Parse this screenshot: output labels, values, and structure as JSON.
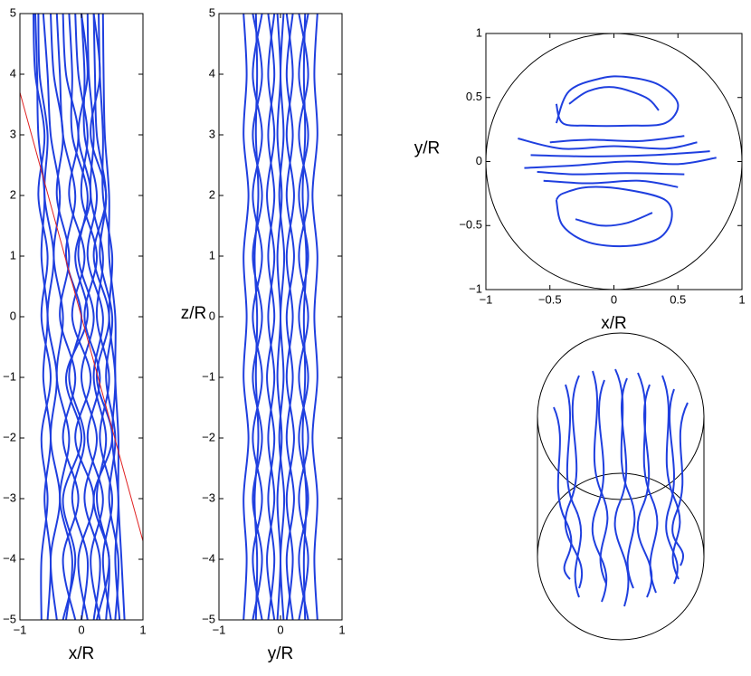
{
  "chart_data": [
    {
      "type": "streamlines",
      "x_label": "x/R",
      "xlim": [
        -1,
        1
      ],
      "ylim": [
        -5,
        5
      ],
      "xticks": [
        {
          "value": -1,
          "label": "−1"
        },
        0,
        1
      ],
      "yticks": [
        {
          "value": -5,
          "label": "−5"
        },
        {
          "value": -4,
          "label": "−4"
        },
        {
          "value": -3,
          "label": "−3"
        },
        {
          "value": -2,
          "label": "−2"
        },
        {
          "value": -1,
          "label": "−1"
        },
        0,
        1,
        2,
        3,
        4,
        5
      ],
      "y": [
        -5,
        -4,
        -3,
        -2,
        -1,
        0,
        1,
        2,
        3,
        4,
        5
      ],
      "color": "#1f3fdf",
      "series": [
        {
          "values": [
            -0.55,
            -0.5,
            -0.6,
            -0.5,
            -0.62,
            -0.55,
            -0.65,
            -0.6,
            -0.7,
            -0.72,
            -0.75
          ]
        },
        {
          "values": [
            -0.4,
            -0.5,
            -0.35,
            -0.5,
            -0.4,
            -0.55,
            -0.45,
            -0.6,
            -0.55,
            -0.68,
            -0.7
          ]
        },
        {
          "values": [
            -0.25,
            -0.15,
            -0.35,
            -0.2,
            -0.4,
            -0.3,
            -0.45,
            -0.35,
            -0.5,
            -0.55,
            -0.62
          ]
        },
        {
          "values": [
            -0.1,
            -0.3,
            -0.05,
            -0.3,
            -0.1,
            -0.35,
            -0.2,
            -0.4,
            -0.3,
            -0.45,
            -0.5
          ]
        },
        {
          "values": [
            0.0,
            0.1,
            -0.15,
            0.05,
            -0.2,
            0.0,
            -0.25,
            -0.1,
            -0.3,
            -0.35,
            -0.4
          ]
        },
        {
          "values": [
            0.1,
            -0.05,
            0.2,
            -0.1,
            0.15,
            -0.15,
            0.05,
            -0.2,
            -0.05,
            -0.25,
            -0.3
          ]
        },
        {
          "values": [
            0.2,
            0.3,
            0.05,
            0.25,
            0.0,
            0.2,
            -0.05,
            0.1,
            -0.15,
            -0.15,
            -0.2
          ]
        },
        {
          "values": [
            0.3,
            0.15,
            0.35,
            0.1,
            0.3,
            0.05,
            0.25,
            0.0,
            0.1,
            -0.05,
            -0.1
          ]
        },
        {
          "values": [
            0.4,
            0.45,
            0.25,
            0.4,
            0.2,
            0.35,
            0.1,
            0.25,
            0.05,
            0.05,
            0.0
          ]
        },
        {
          "values": [
            0.48,
            0.35,
            0.5,
            0.3,
            0.45,
            0.25,
            0.35,
            0.15,
            0.2,
            0.12,
            0.1
          ]
        },
        {
          "values": [
            0.55,
            0.6,
            0.45,
            0.55,
            0.4,
            0.5,
            0.3,
            0.4,
            0.25,
            0.22,
            0.2
          ]
        },
        {
          "values": [
            0.62,
            0.55,
            0.6,
            0.5,
            0.55,
            0.45,
            0.5,
            0.35,
            0.35,
            0.3,
            0.28
          ]
        },
        {
          "values": [
            0.7,
            0.65,
            0.6,
            0.6,
            0.55,
            0.55,
            0.45,
            0.45,
            0.38,
            0.36,
            0.35
          ]
        },
        {
          "values": [
            -0.3,
            -0.1,
            -0.3,
            0.0,
            -0.25,
            0.1,
            -0.1,
            0.15,
            -0.05,
            0.1,
            0.0
          ]
        },
        {
          "values": [
            0.25,
            0.45,
            0.2,
            0.5,
            0.25,
            0.45,
            0.2,
            0.4,
            0.15,
            0.3,
            0.2
          ]
        },
        {
          "values": [
            -0.65,
            -0.65,
            -0.55,
            -0.65,
            -0.5,
            -0.65,
            -0.55,
            -0.7,
            -0.6,
            -0.75,
            -0.78
          ]
        }
      ],
      "reference_line": {
        "x": [
          -1,
          1
        ],
        "y": [
          3.7,
          -3.7
        ],
        "color": "#e02020"
      }
    },
    {
      "type": "streamlines",
      "x_label": "y/R",
      "y_label": "z/R",
      "xlim": [
        -1,
        1
      ],
      "ylim": [
        -5,
        5
      ],
      "xticks": [
        {
          "value": -1,
          "label": "−1"
        },
        0,
        1
      ],
      "yticks": [
        {
          "value": -5,
          "label": "−5"
        },
        {
          "value": -4,
          "label": "−4"
        },
        {
          "value": -3,
          "label": "−3"
        },
        {
          "value": -2,
          "label": "−2"
        },
        {
          "value": -1,
          "label": "−1"
        },
        0,
        1,
        2,
        3,
        4,
        5
      ],
      "y": [
        -5,
        -4,
        -3,
        -2,
        -1,
        0,
        1,
        2,
        3,
        4,
        5
      ],
      "color": "#1f3fdf",
      "series": [
        {
          "values": [
            -0.6,
            -0.55,
            -0.6,
            -0.52,
            -0.6,
            -0.55,
            -0.6,
            -0.52,
            -0.6,
            -0.55,
            -0.6
          ]
        },
        {
          "values": [
            -0.45,
            -0.3,
            -0.45,
            -0.3,
            -0.45,
            -0.3,
            -0.45,
            -0.3,
            -0.45,
            -0.3,
            -0.45
          ]
        },
        {
          "values": [
            -0.3,
            -0.45,
            -0.3,
            -0.45,
            -0.3,
            -0.45,
            -0.3,
            -0.45,
            -0.3,
            -0.45,
            -0.3
          ]
        },
        {
          "values": [
            -0.2,
            -0.1,
            -0.2,
            -0.1,
            -0.22,
            -0.1,
            -0.2,
            -0.1,
            -0.2,
            -0.1,
            -0.2
          ]
        },
        {
          "values": [
            -0.1,
            -0.22,
            -0.1,
            -0.2,
            -0.1,
            -0.2,
            -0.1,
            -0.22,
            -0.1,
            -0.2,
            -0.1
          ]
        },
        {
          "values": [
            -0.05,
            0.0,
            -0.05,
            0.02,
            -0.05,
            0.0,
            -0.05,
            0.02,
            -0.05,
            0.0,
            -0.05
          ]
        },
        {
          "values": [
            0.05,
            0.0,
            0.06,
            -0.02,
            0.05,
            0.0,
            0.06,
            -0.02,
            0.05,
            0.0,
            0.05
          ]
        },
        {
          "values": [
            0.1,
            0.2,
            0.1,
            0.22,
            0.1,
            0.2,
            0.1,
            0.22,
            0.1,
            0.2,
            0.1
          ]
        },
        {
          "values": [
            0.2,
            0.1,
            0.22,
            0.1,
            0.2,
            0.1,
            0.22,
            0.1,
            0.2,
            0.1,
            0.2
          ]
        },
        {
          "values": [
            0.3,
            0.45,
            0.3,
            0.45,
            0.3,
            0.45,
            0.3,
            0.45,
            0.3,
            0.45,
            0.3
          ]
        },
        {
          "values": [
            0.45,
            0.3,
            0.45,
            0.3,
            0.45,
            0.3,
            0.45,
            0.3,
            0.45,
            0.3,
            0.45
          ]
        },
        {
          "values": [
            0.6,
            0.55,
            0.6,
            0.52,
            0.6,
            0.55,
            0.6,
            0.52,
            0.6,
            0.55,
            0.6
          ]
        },
        {
          "values": [
            -0.4,
            -0.38,
            -0.42,
            -0.36,
            -0.4,
            -0.38,
            -0.42,
            -0.36,
            -0.4,
            -0.38,
            -0.4
          ]
        },
        {
          "values": [
            0.4,
            0.38,
            0.42,
            0.36,
            0.4,
            0.38,
            0.42,
            0.36,
            0.4,
            0.38,
            0.4
          ]
        }
      ]
    },
    {
      "type": "curves",
      "x_label": "x/R",
      "y_label": "y/R",
      "xlim": [
        -1,
        1
      ],
      "ylim": [
        -1,
        1
      ],
      "xticks": [
        {
          "value": -1,
          "label": "−1"
        },
        {
          "value": -0.5,
          "label": "−0.5"
        },
        0,
        0.5,
        1
      ],
      "yticks": [
        {
          "value": -1,
          "label": "−1"
        },
        {
          "value": -0.5,
          "label": "−0.5"
        },
        0,
        0.5,
        1
      ],
      "color": "#1f3fdf",
      "series": [
        {
          "x": [
            -0.45,
            -0.35,
            -0.1,
            0.1,
            0.35,
            0.5,
            0.4,
            0.1,
            -0.2,
            -0.4,
            -0.45
          ],
          "values": [
            0.3,
            0.55,
            0.65,
            0.66,
            0.6,
            0.45,
            0.3,
            0.28,
            0.28,
            0.3,
            0.45
          ]
        },
        {
          "x": [
            -0.35,
            -0.2,
            0,
            0.25,
            0.35
          ],
          "values": [
            0.45,
            0.55,
            0.58,
            0.5,
            0.4
          ]
        },
        {
          "x": [
            -0.5,
            -0.2,
            0.2,
            0.55
          ],
          "values": [
            0.15,
            0.17,
            0.16,
            0.2
          ]
        },
        {
          "x": [
            -0.75,
            -0.4,
            0,
            0.4,
            0.65
          ],
          "values": [
            0.18,
            0.1,
            0.12,
            0.1,
            0.15
          ]
        },
        {
          "x": [
            -0.7,
            -0.3,
            0.1,
            0.5,
            0.8
          ],
          "values": [
            -0.05,
            -0.03,
            0.0,
            -0.02,
            0.03
          ]
        },
        {
          "x": [
            -0.65,
            -0.2,
            0.3,
            0.75
          ],
          "values": [
            0.05,
            0.04,
            0.05,
            0.08
          ]
        },
        {
          "x": [
            -0.45,
            -0.4,
            -0.2,
            0.1,
            0.35,
            0.45,
            0.4,
            0.1,
            -0.2,
            -0.4,
            -0.45
          ],
          "values": [
            -0.3,
            -0.5,
            -0.63,
            -0.66,
            -0.6,
            -0.45,
            -0.3,
            -0.22,
            -0.2,
            -0.25,
            -0.3
          ]
        },
        {
          "x": [
            -0.3,
            -0.1,
            0.1,
            0.3
          ],
          "values": [
            -0.45,
            -0.5,
            -0.48,
            -0.4
          ]
        },
        {
          "x": [
            -0.55,
            -0.2,
            0.2,
            0.5
          ],
          "values": [
            -0.15,
            -0.17,
            -0.15,
            -0.2
          ]
        },
        {
          "x": [
            -0.6,
            -0.3,
            0.1,
            0.55
          ],
          "values": [
            -0.08,
            -0.1,
            -0.09,
            -0.1
          ]
        }
      ]
    }
  ]
}
